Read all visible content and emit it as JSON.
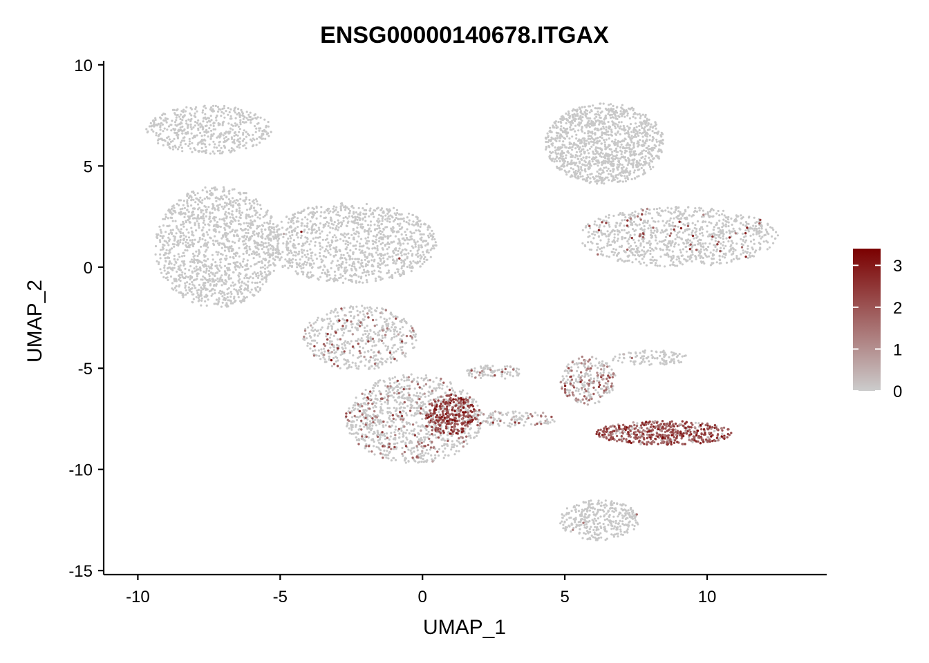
{
  "chart_data": {
    "type": "scatter",
    "title": "ENSG00000140678.ITGAX",
    "xlabel": "UMAP_1",
    "ylabel": "UMAP_2",
    "xlim": [
      -11.2,
      14.2
    ],
    "ylim": [
      -15.2,
      10.2
    ],
    "xticks": [
      -10,
      -5,
      0,
      5,
      10
    ],
    "xtick_labels": [
      "-10",
      "-5",
      "0",
      "5",
      "10"
    ],
    "yticks": [
      -15,
      -10,
      -5,
      0,
      5,
      10
    ],
    "ytick_labels": [
      "-15",
      "-10",
      "-5",
      "0",
      "5",
      "10"
    ],
    "grid": false,
    "legend": {
      "type": "colorbar",
      "placement": "right",
      "range": [
        0,
        3.4
      ],
      "ticks": [
        0,
        1,
        2,
        3
      ],
      "tick_labels": [
        "0",
        "1",
        "2",
        "3"
      ],
      "low_color": "#cccccc",
      "high_color": "#7a0000"
    },
    "point_color_base": "#c8c8c8",
    "clusters": [
      {
        "name": "upper-left-arm",
        "cx": -7.5,
        "cy": 6.8,
        "rx": 2.2,
        "ry": 1.2,
        "n": 500,
        "expr_rate": 0.0,
        "expr_mean": 0
      },
      {
        "name": "left-mass",
        "cx": -7.2,
        "cy": 1.0,
        "rx": 2.2,
        "ry": 3.0,
        "n": 1300,
        "expr_rate": 0.0,
        "expr_mean": 0
      },
      {
        "name": "center-left-mass",
        "cx": -2.5,
        "cy": 1.2,
        "rx": 3.0,
        "ry": 2.0,
        "n": 1100,
        "expr_rate": 0.003,
        "expr_mean": 1.5
      },
      {
        "name": "stem",
        "cx": -2.2,
        "cy": -3.5,
        "rx": 2.0,
        "ry": 1.6,
        "n": 500,
        "expr_rate": 0.12,
        "expr_mean": 1.5
      },
      {
        "name": "lower-left-lobe",
        "cx": -0.3,
        "cy": -7.5,
        "rx": 2.4,
        "ry": 2.2,
        "n": 1000,
        "expr_rate": 0.15,
        "expr_mean": 1.6
      },
      {
        "name": "lower-left-hotspot",
        "cx": 1.0,
        "cy": -7.3,
        "rx": 0.9,
        "ry": 1.0,
        "n": 300,
        "expr_rate": 0.75,
        "expr_mean": 2.3
      },
      {
        "name": "bridge-strand",
        "cx": 3.2,
        "cy": -7.5,
        "rx": 1.6,
        "ry": 0.4,
        "n": 120,
        "expr_rate": 0.2,
        "expr_mean": 1.2
      },
      {
        "name": "upper-right-blob",
        "cx": 6.4,
        "cy": 6.1,
        "rx": 2.1,
        "ry": 2.0,
        "n": 1200,
        "expr_rate": 0.0,
        "expr_mean": 0
      },
      {
        "name": "right-arm",
        "cx": 9.0,
        "cy": 1.5,
        "rx": 3.5,
        "ry": 1.5,
        "n": 900,
        "expr_rate": 0.04,
        "expr_mean": 2.0
      },
      {
        "name": "center-junction",
        "cx": 5.8,
        "cy": -5.6,
        "rx": 1.0,
        "ry": 1.2,
        "n": 250,
        "expr_rate": 0.3,
        "expr_mean": 1.5
      },
      {
        "name": "right-streak",
        "cx": 8.5,
        "cy": -8.2,
        "rx": 2.4,
        "ry": 0.6,
        "n": 500,
        "expr_rate": 0.8,
        "expr_mean": 2.0
      },
      {
        "name": "bottom-blob",
        "cx": 6.2,
        "cy": -12.5,
        "rx": 1.4,
        "ry": 1.0,
        "n": 350,
        "expr_rate": 0.01,
        "expr_mean": 1.0
      },
      {
        "name": "left-connector",
        "cx": 2.5,
        "cy": -5.2,
        "rx": 1.0,
        "ry": 0.35,
        "n": 90,
        "expr_rate": 0.1,
        "expr_mean": 1.2
      },
      {
        "name": "right-whisker",
        "cx": 8.0,
        "cy": -4.5,
        "rx": 1.4,
        "ry": 0.4,
        "n": 100,
        "expr_rate": 0.02,
        "expr_mean": 1.0
      }
    ]
  }
}
